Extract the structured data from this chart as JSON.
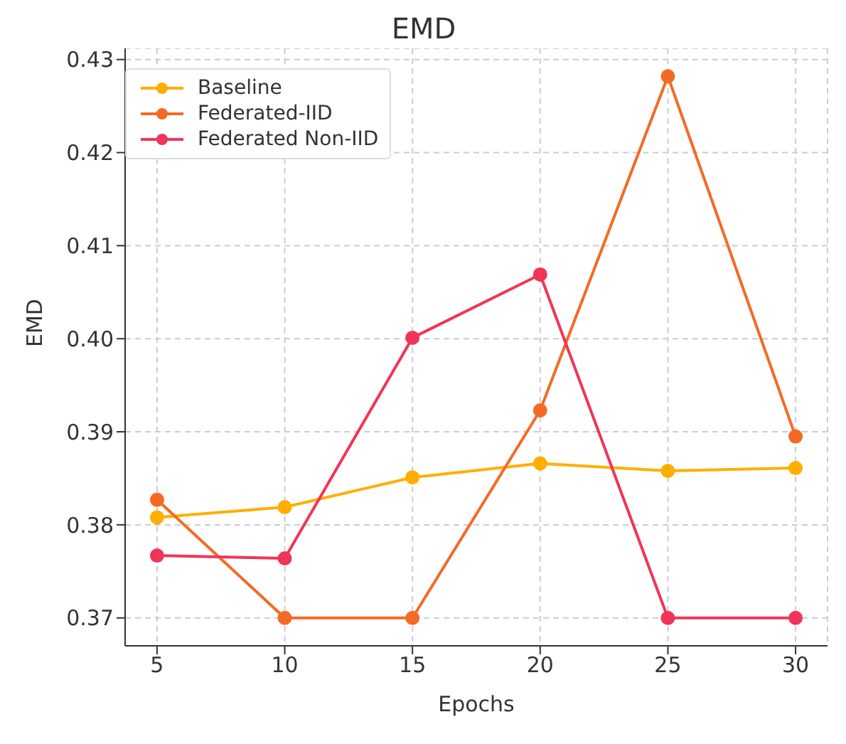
{
  "chart_data": {
    "type": "line",
    "title": "EMD",
    "xlabel": "Epochs",
    "ylabel": "EMD",
    "x": [
      5,
      10,
      15,
      20,
      25,
      30
    ],
    "series": [
      {
        "name": "Baseline",
        "color": "#ffae00",
        "values": [
          0.3808,
          0.3819,
          0.3851,
          0.3866,
          0.3858,
          0.3861
        ]
      },
      {
        "name": "Federated-IID",
        "color": "#f46a25",
        "values": [
          0.3827,
          0.37,
          0.37,
          0.3923,
          0.4282,
          0.3895
        ]
      },
      {
        "name": "Federated Non-IID",
        "color": "#f03558",
        "values": [
          0.3767,
          0.3764,
          0.4001,
          0.4069,
          0.37,
          0.37
        ]
      }
    ],
    "xlim": [
      3.75,
      31.25
    ],
    "xticks": [
      5,
      10,
      15,
      20,
      25,
      30
    ],
    "ylim": [
      0.367,
      0.4312
    ],
    "yticks": [
      0.37,
      0.38,
      0.39,
      {
        "value": 0.4,
        "label": "0.40"
      },
      0.41,
      0.42,
      0.43
    ],
    "grid": true,
    "legend": "top left",
    "marker": "circle",
    "line_style": "solid"
  }
}
